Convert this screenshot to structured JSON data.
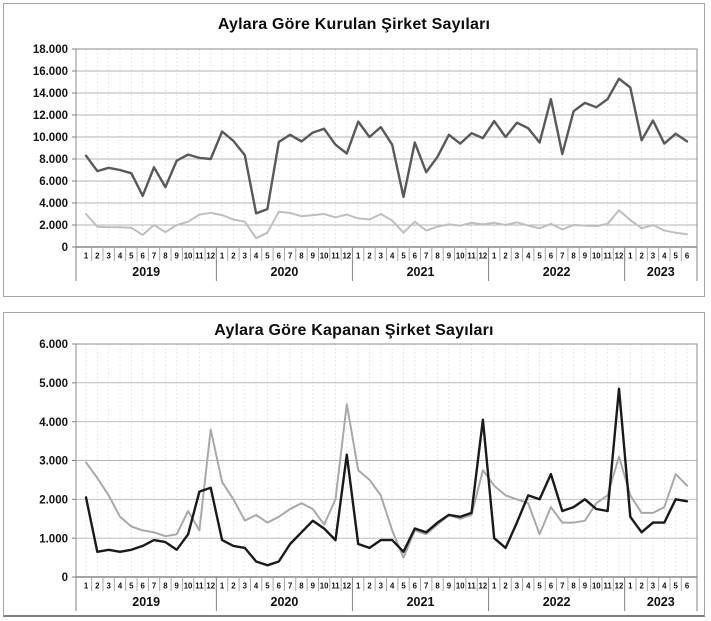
{
  "charts": [
    {
      "title": "Aylara Göre Kurulan Şirket Sayıları",
      "type": "line",
      "grid": true,
      "legend": "none",
      "y_axis": {
        "min": 0,
        "max": 18000,
        "step": 2000,
        "tick_labels": [
          "18.000",
          "16.000",
          "14.000",
          "12.000",
          "10.000",
          "8.000",
          "6.000",
          "4.000",
          "2.000",
          "0"
        ]
      },
      "x_axis": {
        "month_labels": [
          "1",
          "2",
          "3",
          "4",
          "5",
          "6",
          "7",
          "8",
          "9",
          "10",
          "11",
          "12",
          "1",
          "2",
          "3",
          "4",
          "5",
          "6",
          "7",
          "8",
          "9",
          "10",
          "11",
          "12",
          "1",
          "2",
          "3",
          "4",
          "5",
          "6",
          "7",
          "8",
          "9",
          "10",
          "11",
          "12",
          "1",
          "2",
          "3",
          "4",
          "5",
          "6",
          "7",
          "8",
          "9",
          "10",
          "11",
          "12",
          "1",
          "2",
          "3",
          "4",
          "5",
          "6"
        ],
        "years": [
          {
            "label": "2019",
            "month_count": 12
          },
          {
            "label": "2020",
            "month_count": 12
          },
          {
            "label": "2021",
            "month_count": 12
          },
          {
            "label": "2022",
            "month_count": 12
          },
          {
            "label": "2023",
            "month_count": 6
          }
        ]
      },
      "series": [
        {
          "name": "kurulan-sirket-koyu-seri",
          "color": "#595959",
          "width": 2.4,
          "values": [
            8300,
            6900,
            7200,
            7000,
            6700,
            4650,
            7250,
            5450,
            7850,
            8400,
            8100,
            8000,
            10500,
            9650,
            8350,
            3050,
            3450,
            9550,
            10200,
            9600,
            10400,
            10750,
            9300,
            8500,
            11400,
            10000,
            10900,
            9300,
            4550,
            9500,
            6800,
            8200,
            10200,
            9400,
            10350,
            9900,
            11450,
            10000,
            11300,
            10800,
            9500,
            13450,
            8450,
            12350,
            13100,
            12700,
            13450,
            15300,
            14500,
            9700,
            11500,
            9400,
            10300,
            9600
          ]
        },
        {
          "name": "kurulan-acik-gri-seri",
          "color": "#bfbfbf",
          "width": 2,
          "values": [
            3000,
            1850,
            1800,
            1800,
            1750,
            1100,
            2000,
            1350,
            2000,
            2300,
            2950,
            3100,
            2900,
            2500,
            2300,
            800,
            1300,
            3200,
            3100,
            2800,
            2900,
            3000,
            2700,
            2950,
            2600,
            2500,
            3000,
            2400,
            1300,
            2300,
            1500,
            1850,
            2050,
            1950,
            2200,
            2050,
            2200,
            2000,
            2250,
            1950,
            1700,
            2100,
            1600,
            2000,
            1950,
            1900,
            2100,
            3350,
            2450,
            1700,
            2000,
            1500,
            1300,
            1150
          ]
        }
      ]
    },
    {
      "title": "Aylara Göre Kapanan Şirket Sayıları",
      "type": "line",
      "grid": true,
      "legend": "none",
      "y_axis": {
        "min": 0,
        "max": 6000,
        "step": 1000,
        "tick_labels": [
          "6.000",
          "5.000",
          "4.000",
          "3.000",
          "2.000",
          "1.000",
          "0"
        ]
      },
      "x_axis": {
        "month_labels": [
          "1",
          "2",
          "3",
          "4",
          "5",
          "6",
          "7",
          "8",
          "9",
          "10",
          "11",
          "12",
          "1",
          "2",
          "3",
          "4",
          "5",
          "6",
          "7",
          "8",
          "9",
          "10",
          "11",
          "12",
          "1",
          "2",
          "3",
          "4",
          "5",
          "6",
          "7",
          "8",
          "9",
          "10",
          "11",
          "12",
          "1",
          "2",
          "3",
          "4",
          "5",
          "6",
          "7",
          "8",
          "9",
          "10",
          "11",
          "12",
          "1",
          "2",
          "3",
          "4",
          "5",
          "6"
        ],
        "years": [
          {
            "label": "2019",
            "month_count": 12
          },
          {
            "label": "2020",
            "month_count": 12
          },
          {
            "label": "2021",
            "month_count": 12
          },
          {
            "label": "2022",
            "month_count": 12
          },
          {
            "label": "2023",
            "month_count": 6
          }
        ]
      },
      "series": [
        {
          "name": "kapanan-sirket-siyah-seri",
          "color": "#1a1a1a",
          "width": 2.4,
          "values": [
            2050,
            650,
            700,
            650,
            700,
            800,
            950,
            900,
            700,
            1100,
            2200,
            2300,
            950,
            800,
            750,
            400,
            300,
            400,
            850,
            1150,
            1450,
            1250,
            950,
            3150,
            850,
            750,
            950,
            950,
            650,
            1250,
            1150,
            1400,
            1600,
            1550,
            1650,
            4050,
            1000,
            750,
            1400,
            2100,
            2000,
            2650,
            1700,
            1800,
            2000,
            1750,
            1700,
            4850,
            1550,
            1150,
            1400,
            1400,
            2000,
            1950
          ]
        },
        {
          "name": "kapanan-acik-gri-seri",
          "color": "#a9a9a9",
          "width": 2,
          "values": [
            2950,
            2550,
            2100,
            1550,
            1300,
            1200,
            1150,
            1050,
            1100,
            1700,
            1200,
            3800,
            2450,
            2000,
            1450,
            1600,
            1400,
            1550,
            1750,
            1900,
            1750,
            1350,
            2000,
            4450,
            2750,
            2500,
            2100,
            1200,
            500,
            1200,
            1100,
            1350,
            1600,
            1500,
            1600,
            2750,
            2350,
            2100,
            2000,
            1900,
            1100,
            1800,
            1400,
            1400,
            1450,
            1900,
            2100,
            3100,
            2100,
            1650,
            1650,
            1800,
            2650,
            2350
          ]
        }
      ]
    }
  ]
}
